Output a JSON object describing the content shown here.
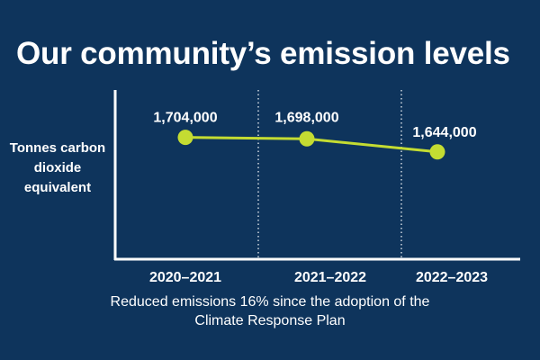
{
  "title": "Our community’s emission levels",
  "caption": {
    "line1": "Reduced emissions 16% since the adoption of the",
    "line2": "Climate Response Plan"
  },
  "colors": {
    "background": "#0e345c",
    "series": "#c4dc32",
    "axis": "#ffffff",
    "text": "#ffffff"
  },
  "chart_data": {
    "type": "line",
    "title": "Our community’s emission levels",
    "xlabel": "",
    "ylabel": "Tonnes carbon dioxide equivalent",
    "categories": [
      "2020–2021",
      "2021–2022",
      "2022–2023"
    ],
    "series": [
      {
        "values": [
          1704000,
          1698000,
          1644000
        ],
        "labels": [
          "1,704,000",
          "1,698,000",
          "1,644,000"
        ]
      }
    ],
    "ylim": [
      1200000,
      1900000
    ],
    "grid": "dotted vertical separators between categories",
    "legend": "none"
  }
}
